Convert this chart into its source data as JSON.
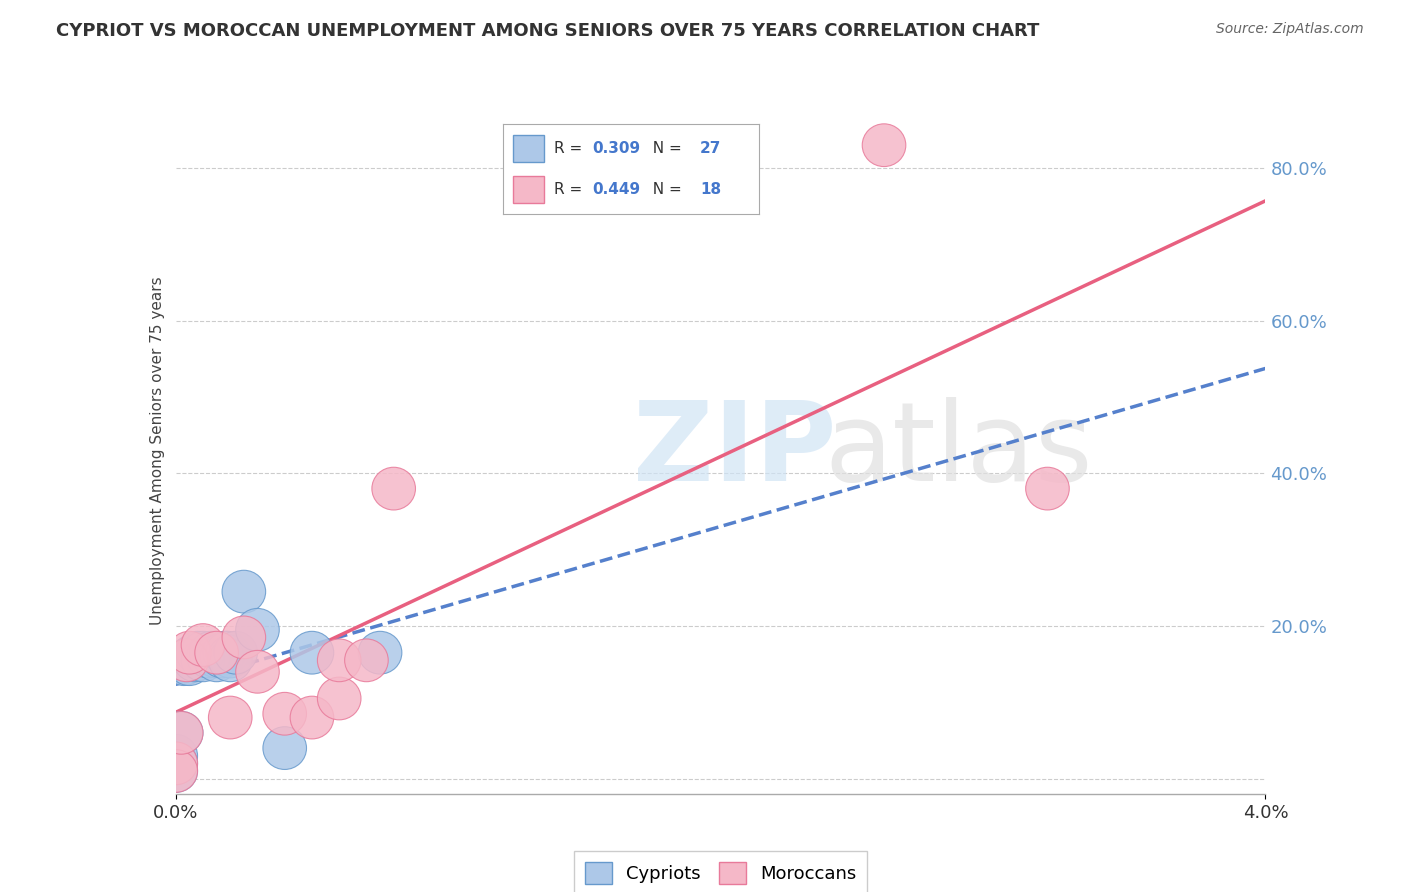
{
  "title": "CYPRIOT VS MOROCCAN UNEMPLOYMENT AMONG SENIORS OVER 75 YEARS CORRELATION CHART",
  "source": "Source: ZipAtlas.com",
  "ylabel": "Unemployment Among Seniors over 75 years",
  "xlim": [
    0.0,
    0.04
  ],
  "ylim": [
    -0.02,
    0.88
  ],
  "ytick_right_vals": [
    0.0,
    0.2,
    0.4,
    0.6,
    0.8
  ],
  "ytick_right_labels": [
    "",
    "20.0%",
    "40.0%",
    "60.0%",
    "80.0%"
  ],
  "cypriot_R": 0.309,
  "cypriot_N": 27,
  "moroccan_R": 0.449,
  "moroccan_N": 18,
  "cypriot_color": "#adc8e8",
  "cypriot_edge": "#6699cc",
  "moroccan_color": "#f5b8c8",
  "moroccan_edge": "#e87a9a",
  "line_cypriot_color": "#5580cc",
  "line_moroccan_color": "#e86080",
  "background_color": "#ffffff",
  "grid_color": "#cccccc",
  "cyp_x": [
    0.0,
    0.0,
    0.0,
    0.0002,
    0.0003,
    0.0004,
    0.0005,
    0.0006,
    0.0007,
    0.0008,
    0.001,
    0.001,
    0.0012,
    0.0013,
    0.0015,
    0.0015,
    0.0017,
    0.0018,
    0.0019,
    0.002,
    0.002,
    0.0022,
    0.0025,
    0.003,
    0.004,
    0.005,
    0.0075
  ],
  "cyp_y": [
    0.03,
    0.02,
    0.01,
    0.06,
    0.15,
    0.155,
    0.15,
    0.16,
    0.155,
    0.165,
    0.165,
    0.155,
    0.16,
    0.165,
    0.16,
    0.155,
    0.16,
    0.165,
    0.165,
    0.16,
    0.155,
    0.165,
    0.245,
    0.195,
    0.04,
    0.165,
    0.165
  ],
  "mor_x": [
    0.0,
    0.0,
    0.0002,
    0.0004,
    0.0005,
    0.001,
    0.0015,
    0.002,
    0.0025,
    0.003,
    0.004,
    0.005,
    0.006,
    0.006,
    0.007,
    0.008,
    0.026,
    0.032
  ],
  "mor_y": [
    0.02,
    0.01,
    0.06,
    0.155,
    0.165,
    0.175,
    0.165,
    0.08,
    0.185,
    0.14,
    0.085,
    0.08,
    0.105,
    0.155,
    0.155,
    0.38,
    0.83,
    0.38
  ]
}
